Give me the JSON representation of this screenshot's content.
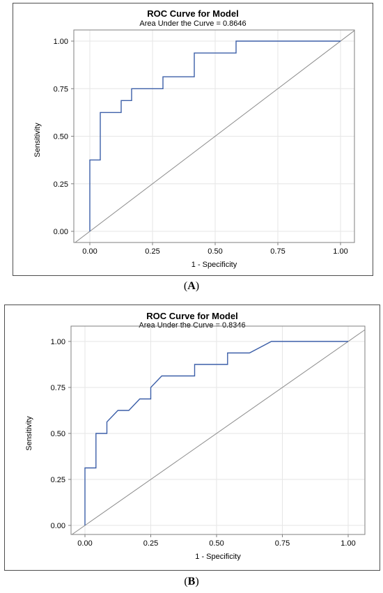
{
  "panels": [
    {
      "title": "ROC Curve for Model",
      "subtitle": "Area Under the Curve = 0.8646",
      "caption": "A"
    },
    {
      "title": "ROC Curve for Model",
      "subtitle": "Area Under the Curve = 0.8346",
      "caption": "B"
    }
  ],
  "colors": {
    "curve": "#3c5fa8",
    "diagonal": "#8c8c8c",
    "grid": "#e6e6e6",
    "frame": "#7f7f7f"
  },
  "chart_data": [
    {
      "type": "line",
      "title": "ROC Curve for Model",
      "subtitle": "Area Under the Curve = 0.8646",
      "xlabel": "1 - Specificity",
      "ylabel": "Sensitivity",
      "xlim": [
        0,
        1
      ],
      "ylim": [
        0,
        1
      ],
      "xticks": [
        "0.00",
        "0.25",
        "0.50",
        "0.75",
        "1.00"
      ],
      "yticks": [
        "0.00",
        "0.25",
        "0.50",
        "0.75",
        "1.00"
      ],
      "grid": true,
      "series": [
        {
          "x": [
            0,
            0,
            0.0417,
            0.0417,
            0.125,
            0.125,
            0.1667,
            0.1667,
            0.2917,
            0.2917,
            0.4167,
            0.4167,
            0.5833,
            0.5833,
            1.0
          ],
          "y": [
            0,
            0.375,
            0.375,
            0.625,
            0.625,
            0.6875,
            0.6875,
            0.75,
            0.75,
            0.8125,
            0.8125,
            0.9375,
            0.9375,
            1.0,
            1.0
          ]
        },
        {
          "x": [
            0,
            1
          ],
          "y": [
            0,
            1
          ]
        }
      ]
    },
    {
      "type": "line",
      "title": "ROC Curve for Model",
      "subtitle": "Area Under the Curve = 0.8346",
      "xlabel": "1 - Specificity",
      "ylabel": "Sensitivity",
      "xlim": [
        0,
        1
      ],
      "ylim": [
        0,
        1
      ],
      "xticks": [
        "0.00",
        "0.25",
        "0.50",
        "0.75",
        "1.00"
      ],
      "yticks": [
        "0.00",
        "0.25",
        "0.50",
        "0.75",
        "1.00"
      ],
      "grid": true,
      "series": [
        {
          "x": [
            0,
            0,
            0.0417,
            0.0417,
            0.0833,
            0.0833,
            0.125,
            0.1667,
            0.2083,
            0.25,
            0.25,
            0.2917,
            0.4167,
            0.4167,
            0.5417,
            0.5417,
            0.625,
            0.7083,
            1.0
          ],
          "y": [
            0,
            0.3125,
            0.3125,
            0.5,
            0.5,
            0.5625,
            0.625,
            0.625,
            0.6875,
            0.6875,
            0.75,
            0.8125,
            0.8125,
            0.875,
            0.875,
            0.9375,
            0.9375,
            1.0,
            1.0
          ]
        },
        {
          "x": [
            0,
            1
          ],
          "y": [
            0,
            1
          ]
        }
      ]
    }
  ]
}
